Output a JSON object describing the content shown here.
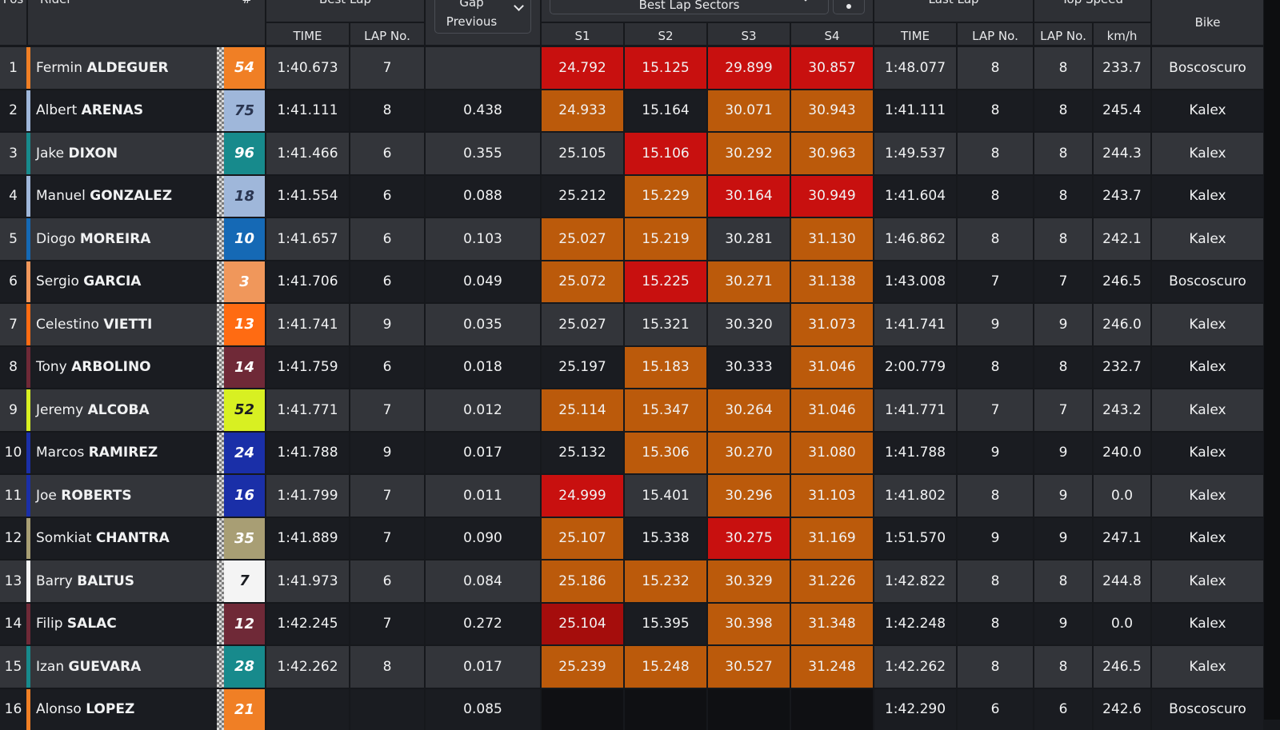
{
  "header": {
    "pos": "Pos",
    "rider": "Rider",
    "hash": "#",
    "best_lap": "Best Lap",
    "gap_line1": "Gap",
    "gap_line2": "Previous",
    "sectors": "Best Lap Sectors",
    "last_lap": "Last Lap",
    "top_speed": "Top Speed",
    "bike": "Bike",
    "sub": {
      "time": "TIME",
      "lap_no": "LAP No.",
      "s1": "S1",
      "s2": "S2",
      "s3": "S3",
      "s4": "S4",
      "last_time": "TIME",
      "last_lap_no": "LAP No.",
      "speed_lap_no": "LAP No.",
      "kmh": "km/h"
    }
  },
  "colors": {
    "row_light": "#33353a",
    "row_dark": "#1a1c21",
    "sector_red": "#c8100f",
    "sector_orange": "#bb5a0b"
  },
  "rows": [
    {
      "pos": "1",
      "first": "Fermin",
      "last": "ALDEGUER",
      "num": "54",
      "num_bg": "#f07f25",
      "num_fg": "#ffffff",
      "stripe": "#f07f25",
      "best_time": "1:40.673",
      "best_lap_no": "7",
      "gap": "",
      "s1": "24.792",
      "s2": "15.125",
      "s3": "29.899",
      "s4": "30.857",
      "c1": "red",
      "c2": "red",
      "c3": "red",
      "c4": "red",
      "last_time": "1:48.077",
      "last_lap_no": "8",
      "speed_lap_no": "8",
      "speed": "233.7",
      "bike": "Boscoscuro"
    },
    {
      "pos": "2",
      "first": "Albert",
      "last": "ARENAS",
      "num": "75",
      "num_bg": "#9fb7da",
      "num_fg": "#2a3550",
      "stripe": "#9fb7da",
      "best_time": "1:41.111",
      "best_lap_no": "8",
      "gap": "0.438",
      "s1": "24.933",
      "s2": "15.164",
      "s3": "30.071",
      "s4": "30.943",
      "c1": "orange",
      "c2": "none",
      "c3": "orange",
      "c4": "orange",
      "last_time": "1:41.111",
      "last_lap_no": "8",
      "speed_lap_no": "8",
      "speed": "245.4",
      "bike": "Kalex"
    },
    {
      "pos": "3",
      "first": "Jake",
      "last": "DIXON",
      "num": "96",
      "num_bg": "#178a8c",
      "num_fg": "#ffffff",
      "stripe": "#178a8c",
      "best_time": "1:41.466",
      "best_lap_no": "6",
      "gap": "0.355",
      "s1": "25.105",
      "s2": "15.106",
      "s3": "30.292",
      "s4": "30.963",
      "c1": "none",
      "c2": "red",
      "c3": "orange",
      "c4": "orange",
      "last_time": "1:49.537",
      "last_lap_no": "8",
      "speed_lap_no": "8",
      "speed": "244.3",
      "bike": "Kalex"
    },
    {
      "pos": "4",
      "first": "Manuel",
      "last": "GONZALEZ",
      "num": "18",
      "num_bg": "#9fb7da",
      "num_fg": "#2a3550",
      "stripe": "#9fb7da",
      "best_time": "1:41.554",
      "best_lap_no": "6",
      "gap": "0.088",
      "s1": "25.212",
      "s2": "15.229",
      "s3": "30.164",
      "s4": "30.949",
      "c1": "none",
      "c2": "orange",
      "c3": "red",
      "c4": "red",
      "last_time": "1:41.604",
      "last_lap_no": "8",
      "speed_lap_no": "8",
      "speed": "243.7",
      "bike": "Kalex"
    },
    {
      "pos": "5",
      "first": "Diogo",
      "last": "MOREIRA",
      "num": "10",
      "num_bg": "#1569b5",
      "num_fg": "#ffffff",
      "stripe": "#1569b5",
      "best_time": "1:41.657",
      "best_lap_no": "6",
      "gap": "0.103",
      "s1": "25.027",
      "s2": "15.219",
      "s3": "30.281",
      "s4": "31.130",
      "c1": "orange",
      "c2": "orange",
      "c3": "none",
      "c4": "orange",
      "last_time": "1:46.862",
      "last_lap_no": "8",
      "speed_lap_no": "8",
      "speed": "242.1",
      "bike": "Kalex"
    },
    {
      "pos": "6",
      "first": "Sergio",
      "last": "GARCIA",
      "num": "3",
      "num_bg": "#f0975b",
      "num_fg": "#ffffff",
      "stripe": "#f0975b",
      "best_time": "1:41.706",
      "best_lap_no": "6",
      "gap": "0.049",
      "s1": "25.072",
      "s2": "15.225",
      "s3": "30.271",
      "s4": "31.138",
      "c1": "orange",
      "c2": "red",
      "c3": "orange",
      "c4": "orange",
      "last_time": "1:43.008",
      "last_lap_no": "7",
      "speed_lap_no": "7",
      "speed": "246.5",
      "bike": "Boscoscuro"
    },
    {
      "pos": "7",
      "first": "Celestino",
      "last": "VIETTI",
      "num": "13",
      "num_bg": "#ff6b12",
      "num_fg": "#ffffff",
      "stripe": "#ff6b12",
      "best_time": "1:41.741",
      "best_lap_no": "9",
      "gap": "0.035",
      "s1": "25.027",
      "s2": "15.321",
      "s3": "30.320",
      "s4": "31.073",
      "c1": "none",
      "c2": "none",
      "c3": "none",
      "c4": "orange",
      "last_time": "1:41.741",
      "last_lap_no": "9",
      "speed_lap_no": "9",
      "speed": "246.0",
      "bike": "Kalex"
    },
    {
      "pos": "8",
      "first": "Tony",
      "last": "ARBOLINO",
      "num": "14",
      "num_bg": "#6f2937",
      "num_fg": "#ffffff",
      "stripe": "#6f2937",
      "best_time": "1:41.759",
      "best_lap_no": "6",
      "gap": "0.018",
      "s1": "25.197",
      "s2": "15.183",
      "s3": "30.333",
      "s4": "31.046",
      "c1": "none",
      "c2": "orange",
      "c3": "none",
      "c4": "orange",
      "last_time": "2:00.779",
      "last_lap_no": "8",
      "speed_lap_no": "8",
      "speed": "232.7",
      "bike": "Kalex"
    },
    {
      "pos": "9",
      "first": "Jeremy",
      "last": "ALCOBA",
      "num": "52",
      "num_bg": "#d8f022",
      "num_fg": "#1a1c21",
      "stripe": "#d8f022",
      "best_time": "1:41.771",
      "best_lap_no": "7",
      "gap": "0.012",
      "s1": "25.114",
      "s2": "15.347",
      "s3": "30.264",
      "s4": "31.046",
      "c1": "orange",
      "c2": "orange",
      "c3": "orange",
      "c4": "orange",
      "last_time": "1:41.771",
      "last_lap_no": "7",
      "speed_lap_no": "7",
      "speed": "243.2",
      "bike": "Kalex"
    },
    {
      "pos": "10",
      "first": "Marcos",
      "last": "RAMIREZ",
      "num": "24",
      "num_bg": "#1a2fa8",
      "num_fg": "#ffffff",
      "stripe": "#1a2fa8",
      "best_time": "1:41.788",
      "best_lap_no": "9",
      "gap": "0.017",
      "s1": "25.132",
      "s2": "15.306",
      "s3": "30.270",
      "s4": "31.080",
      "c1": "none",
      "c2": "orange",
      "c3": "orange",
      "c4": "orange",
      "last_time": "1:41.788",
      "last_lap_no": "9",
      "speed_lap_no": "9",
      "speed": "240.0",
      "bike": "Kalex"
    },
    {
      "pos": "11",
      "first": "Joe",
      "last": "ROBERTS",
      "num": "16",
      "num_bg": "#1a2fa8",
      "num_fg": "#ffffff",
      "stripe": "#1a2fa8",
      "best_time": "1:41.799",
      "best_lap_no": "7",
      "gap": "0.011",
      "s1": "24.999",
      "s2": "15.401",
      "s3": "30.296",
      "s4": "31.103",
      "c1": "red",
      "c2": "none",
      "c3": "orange",
      "c4": "orange",
      "last_time": "1:41.802",
      "last_lap_no": "8",
      "speed_lap_no": "9",
      "speed": "0.0",
      "bike": "Kalex"
    },
    {
      "pos": "12",
      "first": "Somkiat",
      "last": "CHANTRA",
      "num": "35",
      "num_bg": "#a89e74",
      "num_fg": "#ffffff",
      "stripe": "#a89e74",
      "best_time": "1:41.889",
      "best_lap_no": "7",
      "gap": "0.090",
      "s1": "25.107",
      "s2": "15.338",
      "s3": "30.275",
      "s4": "31.169",
      "c1": "orange",
      "c2": "none",
      "c3": "red",
      "c4": "orange",
      "last_time": "1:51.570",
      "last_lap_no": "9",
      "speed_lap_no": "9",
      "speed": "247.1",
      "bike": "Kalex"
    },
    {
      "pos": "13",
      "first": "Barry",
      "last": "BALTUS",
      "num": "7",
      "num_bg": "#f4f4f4",
      "num_fg": "#1a1c21",
      "stripe": "#f4f4f4",
      "best_time": "1:41.973",
      "best_lap_no": "6",
      "gap": "0.084",
      "s1": "25.186",
      "s2": "15.232",
      "s3": "30.329",
      "s4": "31.226",
      "c1": "orange",
      "c2": "orange",
      "c3": "orange",
      "c4": "orange",
      "last_time": "1:42.822",
      "last_lap_no": "8",
      "speed_lap_no": "8",
      "speed": "244.8",
      "bike": "Kalex"
    },
    {
      "pos": "14",
      "first": "Filip",
      "last": "SALAC",
      "num": "12",
      "num_bg": "#6f2937",
      "num_fg": "#ffffff",
      "stripe": "#6f2937",
      "best_time": "1:42.245",
      "best_lap_no": "7",
      "gap": "0.272",
      "s1": "25.104",
      "s2": "15.395",
      "s3": "30.398",
      "s4": "31.348",
      "c1": "darkred",
      "c2": "none",
      "c3": "orange",
      "c4": "orange",
      "last_time": "1:42.248",
      "last_lap_no": "8",
      "speed_lap_no": "9",
      "speed": "0.0",
      "bike": "Kalex"
    },
    {
      "pos": "15",
      "first": "Izan",
      "last": "GUEVARA",
      "num": "28",
      "num_bg": "#178a8c",
      "num_fg": "#ffffff",
      "stripe": "#178a8c",
      "best_time": "1:42.262",
      "best_lap_no": "8",
      "gap": "0.017",
      "s1": "25.239",
      "s2": "15.248",
      "s3": "30.527",
      "s4": "31.248",
      "c1": "orange",
      "c2": "orange",
      "c3": "orange",
      "c4": "orange",
      "last_time": "1:42.262",
      "last_lap_no": "8",
      "speed_lap_no": "8",
      "speed": "246.5",
      "bike": "Kalex"
    },
    {
      "pos": "16",
      "first": "Alonso",
      "last": "LOPEZ",
      "num": "21",
      "num_bg": "#f07f25",
      "num_fg": "#ffffff",
      "stripe": "#f07f25",
      "best_time": "",
      "best_lap_no": "",
      "gap": "0.085",
      "s1": "",
      "s2": "",
      "s3": "",
      "s4": "",
      "c1": "black",
      "c2": "black",
      "c3": "black",
      "c4": "black",
      "last_time": "1:42.290",
      "last_lap_no": "6",
      "speed_lap_no": "6",
      "speed": "242.6",
      "bike": "Boscoscuro"
    }
  ]
}
